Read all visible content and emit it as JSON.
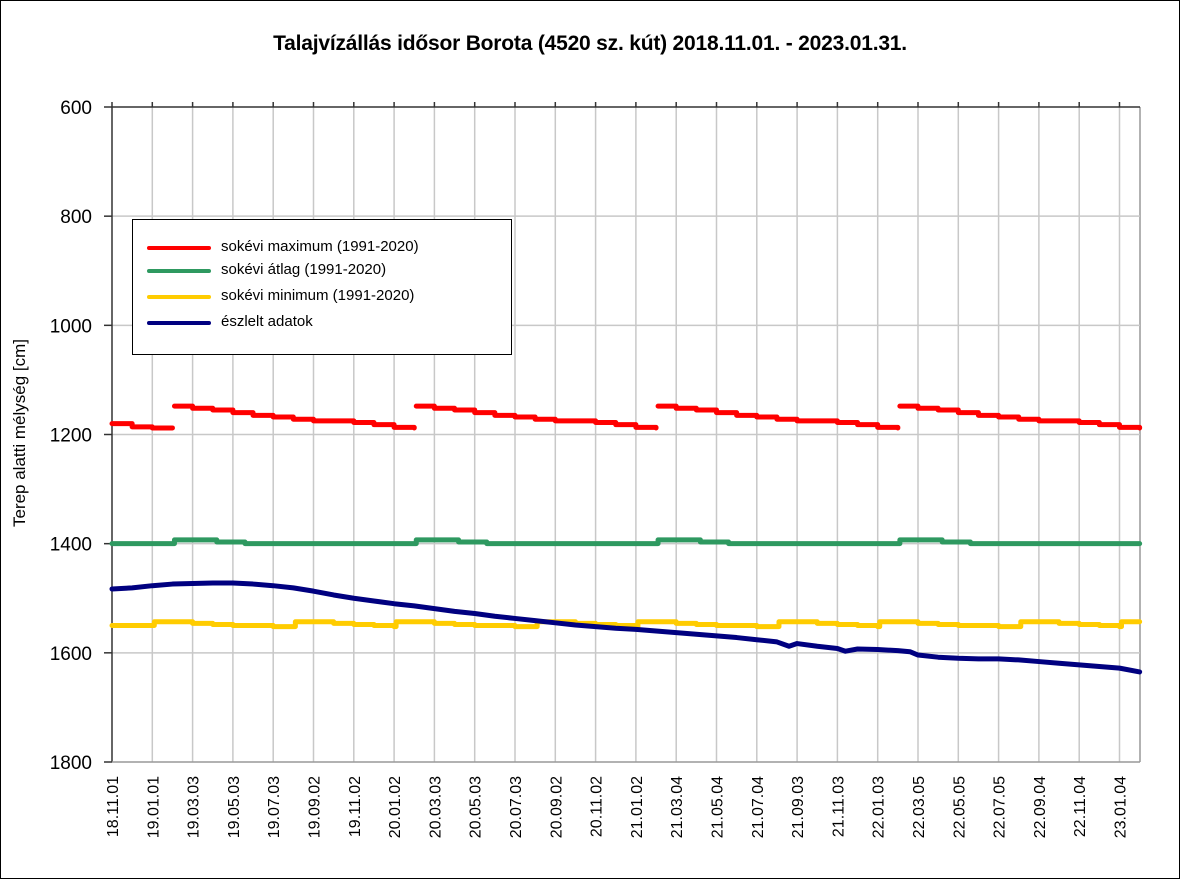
{
  "chart_data": {
    "type": "line",
    "title": "Talajvízállás idősor Borota (4520 sz. kút) 2018.11.01. - 2023.01.31.",
    "xlabel": "",
    "ylabel": "Terep alatti mélység [cm]",
    "ylim": [
      600,
      1800
    ],
    "y_inverted": true,
    "y_ticks": [
      600,
      800,
      1000,
      1200,
      1400,
      1600,
      1800
    ],
    "grid": true,
    "legend_position": "upper-left-inside",
    "x_tick_labels": [
      "18.11.01",
      "19.01.01",
      "19.03.03",
      "19.05.03",
      "19.07.03",
      "19.09.02",
      "19.11.02",
      "20.01.02",
      "20.03.03",
      "20.05.03",
      "20.07.03",
      "20.09.02",
      "20.11.02",
      "21.01.02",
      "21.03.04",
      "21.05.04",
      "21.07.04",
      "21.09.03",
      "21.11.03",
      "22.01.03",
      "22.03.05",
      "22.05.05",
      "22.07.05",
      "22.09.04",
      "22.11.04",
      "23.01.04"
    ],
    "x_domain_index": [
      0,
      25.5
    ],
    "series": [
      {
        "name": "sokévi maximum (1991-2020)",
        "color": "#ff0000",
        "step": true,
        "points": [
          [
            0,
            1180
          ],
          [
            0.5,
            1186
          ],
          [
            1.0,
            1188
          ],
          [
            1.5,
            1188
          ],
          [
            1.55,
            1148
          ],
          [
            2.0,
            1152
          ],
          [
            2.5,
            1155
          ],
          [
            3.0,
            1160
          ],
          [
            3.5,
            1165
          ],
          [
            4.0,
            1168
          ],
          [
            4.5,
            1172
          ],
          [
            5.0,
            1175
          ],
          [
            5.5,
            1175
          ],
          [
            6.0,
            1178
          ],
          [
            6.5,
            1182
          ],
          [
            7.0,
            1187
          ],
          [
            7.5,
            1188
          ],
          [
            7.55,
            1148
          ],
          [
            8.0,
            1152
          ],
          [
            8.5,
            1155
          ],
          [
            9.0,
            1160
          ],
          [
            9.5,
            1165
          ],
          [
            10.0,
            1168
          ],
          [
            10.5,
            1172
          ],
          [
            11.0,
            1175
          ],
          [
            11.5,
            1175
          ],
          [
            12.0,
            1178
          ],
          [
            12.5,
            1182
          ],
          [
            13.0,
            1187
          ],
          [
            13.5,
            1188
          ],
          [
            13.55,
            1148
          ],
          [
            14.0,
            1152
          ],
          [
            14.5,
            1155
          ],
          [
            15.0,
            1160
          ],
          [
            15.5,
            1165
          ],
          [
            16.0,
            1168
          ],
          [
            16.5,
            1172
          ],
          [
            17.0,
            1175
          ],
          [
            17.5,
            1175
          ],
          [
            18.0,
            1178
          ],
          [
            18.5,
            1182
          ],
          [
            19.0,
            1187
          ],
          [
            19.5,
            1188
          ],
          [
            19.55,
            1148
          ],
          [
            20.0,
            1152
          ],
          [
            20.5,
            1155
          ],
          [
            21.0,
            1160
          ],
          [
            21.5,
            1165
          ],
          [
            22.0,
            1168
          ],
          [
            22.5,
            1172
          ],
          [
            23.0,
            1175
          ],
          [
            23.5,
            1175
          ],
          [
            24.0,
            1178
          ],
          [
            24.5,
            1182
          ],
          [
            25.0,
            1187
          ],
          [
            25.5,
            1188
          ]
        ]
      },
      {
        "name": "sokévi átlag (1991-2020)",
        "color": "#2e9960",
        "step": true,
        "points": [
          [
            0,
            1400
          ],
          [
            1.5,
            1400
          ],
          [
            1.55,
            1393
          ],
          [
            2.5,
            1393
          ],
          [
            2.6,
            1397
          ],
          [
            3.2,
            1397
          ],
          [
            3.3,
            1400
          ],
          [
            7.5,
            1400
          ],
          [
            7.55,
            1393
          ],
          [
            8.5,
            1393
          ],
          [
            8.6,
            1397
          ],
          [
            9.2,
            1397
          ],
          [
            9.3,
            1400
          ],
          [
            13.5,
            1400
          ],
          [
            13.55,
            1393
          ],
          [
            14.5,
            1393
          ],
          [
            14.6,
            1397
          ],
          [
            15.2,
            1397
          ],
          [
            15.3,
            1400
          ],
          [
            19.5,
            1400
          ],
          [
            19.55,
            1393
          ],
          [
            20.5,
            1393
          ],
          [
            20.6,
            1397
          ],
          [
            21.2,
            1397
          ],
          [
            21.3,
            1400
          ],
          [
            25.5,
            1400
          ]
        ]
      },
      {
        "name": "sokévi minimum (1991-2020)",
        "color": "#ffcc00",
        "step": true,
        "points": [
          [
            0,
            1550
          ],
          [
            1.0,
            1550
          ],
          [
            1.05,
            1543
          ],
          [
            1.5,
            1543
          ],
          [
            2.0,
            1546
          ],
          [
            2.5,
            1548
          ],
          [
            3.0,
            1550
          ],
          [
            3.5,
            1550
          ],
          [
            4.0,
            1552
          ],
          [
            4.5,
            1552
          ],
          [
            4.55,
            1543
          ],
          [
            5.0,
            1543
          ],
          [
            5.5,
            1546
          ],
          [
            6.0,
            1548
          ],
          [
            6.5,
            1550
          ],
          [
            7.0,
            1552
          ],
          [
            7.05,
            1543
          ],
          [
            7.5,
            1543
          ],
          [
            8.0,
            1546
          ],
          [
            8.5,
            1548
          ],
          [
            9.0,
            1550
          ],
          [
            9.5,
            1550
          ],
          [
            10.0,
            1552
          ],
          [
            10.5,
            1552
          ],
          [
            10.55,
            1543
          ],
          [
            11.0,
            1543
          ],
          [
            11.5,
            1546
          ],
          [
            12.0,
            1548
          ],
          [
            12.5,
            1550
          ],
          [
            13.0,
            1552
          ],
          [
            13.05,
            1543
          ],
          [
            13.5,
            1543
          ],
          [
            14.0,
            1546
          ],
          [
            14.5,
            1548
          ],
          [
            15.0,
            1550
          ],
          [
            15.5,
            1550
          ],
          [
            16.0,
            1552
          ],
          [
            16.5,
            1552
          ],
          [
            16.55,
            1543
          ],
          [
            17.0,
            1543
          ],
          [
            17.5,
            1546
          ],
          [
            18.0,
            1548
          ],
          [
            18.5,
            1550
          ],
          [
            19.0,
            1552
          ],
          [
            19.05,
            1543
          ],
          [
            19.5,
            1543
          ],
          [
            20.0,
            1546
          ],
          [
            20.5,
            1548
          ],
          [
            21.0,
            1550
          ],
          [
            21.5,
            1550
          ],
          [
            22.0,
            1552
          ],
          [
            22.5,
            1552
          ],
          [
            22.55,
            1543
          ],
          [
            23.0,
            1543
          ],
          [
            23.5,
            1546
          ],
          [
            24.0,
            1548
          ],
          [
            24.5,
            1550
          ],
          [
            25.0,
            1552
          ],
          [
            25.05,
            1543
          ],
          [
            25.5,
            1543
          ]
        ]
      },
      {
        "name": "észlelt adatok",
        "color": "#000080",
        "step": false,
        "points": [
          [
            0,
            1483
          ],
          [
            0.5,
            1481
          ],
          [
            1.0,
            1477
          ],
          [
            1.5,
            1474
          ],
          [
            2.0,
            1473
          ],
          [
            2.5,
            1472
          ],
          [
            3.0,
            1472
          ],
          [
            3.5,
            1474
          ],
          [
            4.0,
            1477
          ],
          [
            4.5,
            1481
          ],
          [
            5.0,
            1487
          ],
          [
            5.5,
            1494
          ],
          [
            6.0,
            1500
          ],
          [
            6.5,
            1505
          ],
          [
            7.0,
            1510
          ],
          [
            7.5,
            1514
          ],
          [
            8.0,
            1519
          ],
          [
            8.5,
            1524
          ],
          [
            9.0,
            1528
          ],
          [
            9.5,
            1533
          ],
          [
            10.0,
            1537
          ],
          [
            10.5,
            1541
          ],
          [
            11.0,
            1545
          ],
          [
            11.5,
            1549
          ],
          [
            12.0,
            1552
          ],
          [
            12.5,
            1555
          ],
          [
            13.0,
            1557
          ],
          [
            13.5,
            1560
          ],
          [
            14.0,
            1563
          ],
          [
            14.5,
            1566
          ],
          [
            15.0,
            1569
          ],
          [
            15.5,
            1572
          ],
          [
            16.0,
            1576
          ],
          [
            16.5,
            1580
          ],
          [
            16.8,
            1588
          ],
          [
            17.0,
            1583
          ],
          [
            17.5,
            1588
          ],
          [
            18.0,
            1592
          ],
          [
            18.2,
            1597
          ],
          [
            18.5,
            1593
          ],
          [
            19.0,
            1594
          ],
          [
            19.5,
            1596
          ],
          [
            19.8,
            1598
          ],
          [
            20.0,
            1604
          ],
          [
            20.5,
            1608
          ],
          [
            21.0,
            1610
          ],
          [
            21.5,
            1611
          ],
          [
            22.0,
            1611
          ],
          [
            22.5,
            1613
          ],
          [
            23.0,
            1616
          ],
          [
            23.5,
            1619
          ],
          [
            24.0,
            1622
          ],
          [
            24.5,
            1625
          ],
          [
            25.0,
            1628
          ],
          [
            25.5,
            1635
          ]
        ]
      }
    ]
  },
  "legend": {
    "items": [
      {
        "label": "sokévi maximum (1991-2020)",
        "color": "#ff0000"
      },
      {
        "label": "sokévi átlag (1991-2020)",
        "color": "#2e9960"
      },
      {
        "label": "sokévi minimum (1991-2020)",
        "color": "#ffcc00"
      },
      {
        "label": "észlelt adatok",
        "color": "#000080"
      }
    ]
  }
}
